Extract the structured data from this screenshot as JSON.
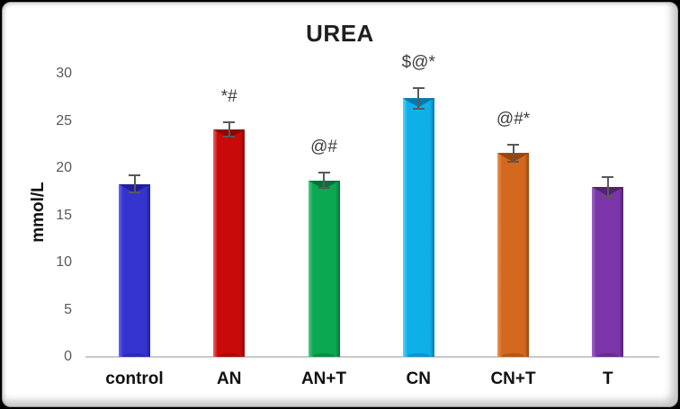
{
  "frame": {
    "outer_background": "#000000",
    "panel_background": "#ffffff",
    "panel_border": "#9e9e9e"
  },
  "chart_data": {
    "type": "bar",
    "title": "UREA",
    "xlabel": "",
    "ylabel": "mmol/L",
    "categories": [
      "control",
      "AN",
      "AN+T",
      "CN",
      "CN+T",
      "T"
    ],
    "values": [
      18.3,
      24.1,
      18.7,
      27.4,
      21.6,
      18.0
    ],
    "errors": [
      1.0,
      0.9,
      0.9,
      1.2,
      1.0,
      1.1
    ],
    "annotations": [
      "",
      "*#",
      "@#",
      "$@*",
      "@#*",
      ""
    ],
    "yticks": [
      0,
      5,
      10,
      15,
      20,
      25,
      30
    ],
    "ylim": [
      0,
      30
    ],
    "grid": false,
    "legend": null,
    "bar_colors": [
      {
        "name": "blue",
        "main": "#3434CE",
        "light": "#6A6AE8",
        "dark": "#1F1F9C"
      },
      {
        "name": "red",
        "main": "#C90A0A",
        "light": "#EE6B6B",
        "dark": "#8F0606"
      },
      {
        "name": "green",
        "main": "#0CA751",
        "light": "#52CC8A",
        "dark": "#06713A"
      },
      {
        "name": "cyan",
        "main": "#0FB0EA",
        "light": "#5FD2F8",
        "dark": "#0879A6"
      },
      {
        "name": "orange",
        "main": "#D2691E",
        "light": "#E9965B",
        "dark": "#94480F"
      },
      {
        "name": "purple",
        "main": "#7B35A8",
        "light": "#A168C6",
        "dark": "#53216F"
      }
    ],
    "title_color": "#1f1f1f",
    "axis_line_color": "#c9c9c9",
    "tick_label_color": "#595959",
    "category_label_color": "#111111",
    "annotation_color": "#3d3d3d",
    "error_bar_color": "#595959"
  }
}
